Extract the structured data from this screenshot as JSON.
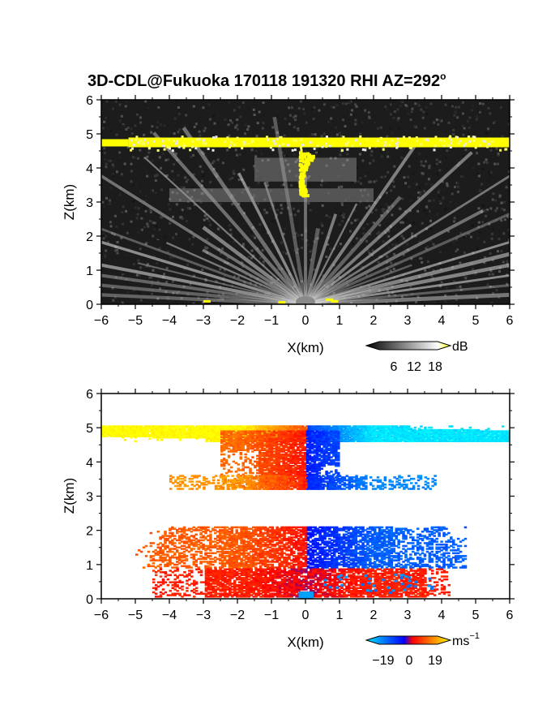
{
  "figure": {
    "title": "3D-CDL@Fukuoka 170118 191320 RHI AZ=292",
    "title_degree": "o"
  },
  "chart_data": [
    {
      "type": "heatmap",
      "panel": "reflectivity",
      "xlabel": "X(km)",
      "ylabel": "Z(km)",
      "xlim": [
        -6,
        6
      ],
      "ylim": [
        0,
        6
      ],
      "xticks": [
        "−6",
        "−5",
        "−4",
        "−3",
        "−2",
        "−1",
        "0",
        "1",
        "2",
        "3",
        "4",
        "5",
        "6"
      ],
      "yticks": [
        "0",
        "1",
        "2",
        "3",
        "4",
        "5",
        "6"
      ],
      "background": "#1c1c1c",
      "features": [
        {
          "name": "cloud-top-layer",
          "z": 4.75,
          "x_range": [
            -6,
            6
          ],
          "value_db": 20
        },
        {
          "name": "echo-column",
          "z_range": [
            3.2,
            4.5
          ],
          "x_range": [
            -0.2,
            0.3
          ],
          "value_db": 20
        },
        {
          "name": "mid-layer-band",
          "z_range": [
            3.0,
            3.4
          ],
          "x_range": [
            -4.0,
            2.0
          ],
          "value_db": 12
        },
        {
          "name": "upper-haze",
          "z_range": [
            3.6,
            4.3
          ],
          "x_range": [
            -1.5,
            1.5
          ],
          "value_db": 10
        },
        {
          "name": "low-level-radial-fan",
          "origin_x": 0,
          "origin_z": 0,
          "value_db": 12
        }
      ],
      "colorbar": {
        "unit": "dB",
        "ticks": [
          "6",
          "12",
          "18"
        ],
        "range": [
          0,
          20
        ],
        "colors": [
          "#000000",
          "#ffffff",
          "#ffff00"
        ]
      }
    },
    {
      "type": "heatmap",
      "panel": "doppler-velocity",
      "xlabel": "X(km)",
      "ylabel": "Z(km)",
      "xlim": [
        -6,
        6
      ],
      "ylim": [
        0,
        6
      ],
      "xticks": [
        "−6",
        "−5",
        "−4",
        "−3",
        "−2",
        "−1",
        "0",
        "1",
        "2",
        "3",
        "4",
        "5",
        "6"
      ],
      "yticks": [
        "0",
        "1",
        "2",
        "3",
        "4",
        "5",
        "6"
      ],
      "background": "#ffffff",
      "features": [
        {
          "name": "cloud-top-layer",
          "z_range": [
            4.6,
            5.05
          ],
          "x_range": [
            -6,
            6
          ],
          "velocity_left": 19,
          "velocity_right": -19
        },
        {
          "name": "upper-layer",
          "z_range": [
            3.2,
            4.9
          ],
          "x_range": [
            -2.5,
            1.0
          ],
          "velocity_left": 9,
          "velocity_right": -11
        },
        {
          "name": "upper-shelf",
          "z_range": [
            3.2,
            3.6
          ],
          "x_range": [
            -4.0,
            3.8
          ],
          "velocity_left": 12,
          "velocity_right": -12
        },
        {
          "name": "mid-layer",
          "z_range": [
            0.9,
            2.1
          ],
          "x_range": [
            -5.0,
            4.7
          ],
          "velocity_left": 8,
          "velocity_right": -9
        },
        {
          "name": "low-layer",
          "z_range": [
            0.05,
            0.85
          ],
          "x_range": [
            -4.5,
            4.2
          ],
          "velocity_left": 4,
          "velocity_right": 4
        },
        {
          "name": "near-radar-patch",
          "z_range": [
            0.0,
            0.2
          ],
          "x_range": [
            -0.2,
            0.2
          ],
          "velocity": -14
        }
      ],
      "colorbar": {
        "unit": "ms",
        "unit_exponent": "−1",
        "ticks": [
          "−19",
          "0",
          "19"
        ],
        "range": [
          -19,
          19
        ],
        "colors": [
          "#00e5ff",
          "#0000ff",
          "#ff0000",
          "#ffff00"
        ]
      }
    }
  ]
}
